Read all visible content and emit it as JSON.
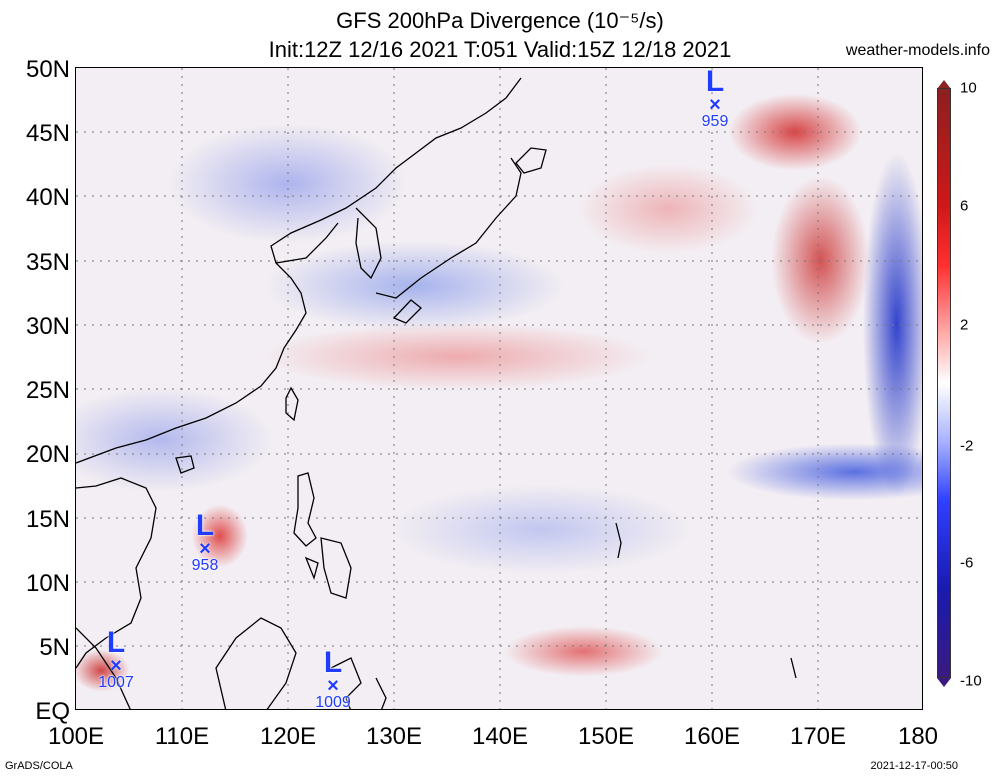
{
  "title": {
    "line1": "GFS 200hPa Divergence (10⁻⁵/s)",
    "line2": "Init:12Z 12/16 2021 T:051 Valid:15Z 12/18 2021",
    "site": "weather-models.info"
  },
  "axes": {
    "lat_labels": [
      "50N",
      "45N",
      "40N",
      "35N",
      "30N",
      "25N",
      "20N",
      "15N",
      "10N",
      "5N",
      "EQ"
    ],
    "lon_labels": [
      "100E",
      "110E",
      "120E",
      "130E",
      "140E",
      "150E",
      "160E",
      "170E",
      "180"
    ]
  },
  "colorbar": {
    "labels": [
      "10",
      "6",
      "2",
      "-2",
      "-6",
      "-10"
    ],
    "colors": {
      "max": "#8c1f1f",
      "pos": "#ff3030",
      "zero": "#ffffff",
      "neg": "#3040ff",
      "min": "#3a1a80"
    }
  },
  "lows": [
    {
      "letter": "L",
      "mark": "×",
      "pressure": "959"
    },
    {
      "letter": "L",
      "mark": "×",
      "pressure": "958"
    },
    {
      "letter": "L",
      "mark": "×",
      "pressure": "1007"
    },
    {
      "letter": "L",
      "mark": "×",
      "pressure": "1009"
    }
  ],
  "footer": {
    "left": "GrADS/COLA",
    "right": "2021-12-17-00:50"
  }
}
